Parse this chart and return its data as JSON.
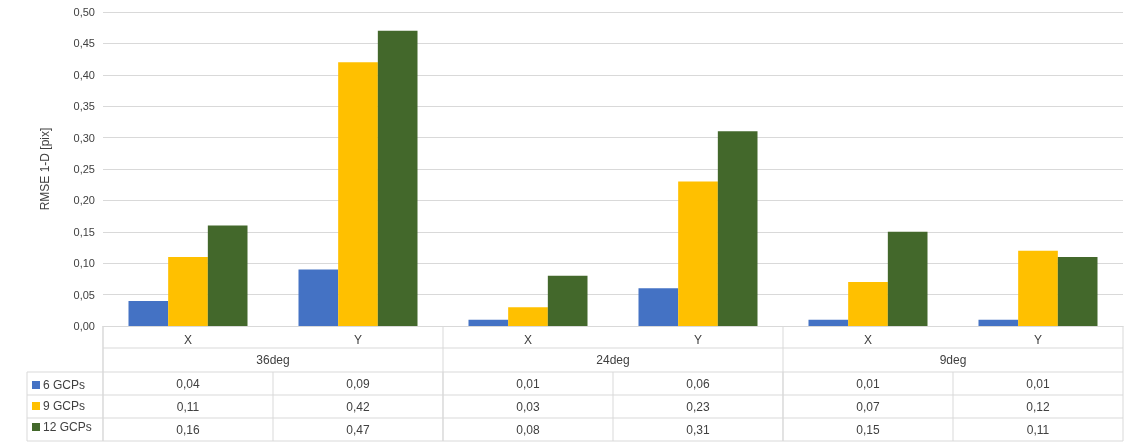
{
  "chart_data": {
    "type": "bar",
    "ylabel": "RMSE 1-D [pix]",
    "categories": [
      "X",
      "Y",
      "X",
      "Y",
      "X",
      "Y"
    ],
    "annotations": [
      "36deg",
      "24deg",
      "9deg"
    ],
    "series": [
      {
        "name": "6 GCPs",
        "color": "#4472c4",
        "values": [
          0.04,
          0.09,
          0.01,
          0.06,
          0.01,
          0.01
        ],
        "value_labels": [
          "0,04",
          "0,09",
          "0,01",
          "0,06",
          "0,01",
          "0,01"
        ]
      },
      {
        "name": "9 GCPs",
        "color": "#ffc000",
        "values": [
          0.11,
          0.42,
          0.03,
          0.23,
          0.07,
          0.12
        ],
        "value_labels": [
          "0,11",
          "0,42",
          "0,03",
          "0,23",
          "0,07",
          "0,12"
        ]
      },
      {
        "name": "12 GCPs",
        "color": "#43682b",
        "values": [
          0.16,
          0.47,
          0.08,
          0.31,
          0.15,
          0.11
        ],
        "value_labels": [
          "0,16",
          "0,47",
          "0,08",
          "0,31",
          "0,15",
          "0,11"
        ]
      }
    ],
    "ylim": [
      0,
      0.5
    ],
    "yticks": [
      {
        "value": 0,
        "label": "0,00"
      },
      {
        "value": 0.05,
        "label": "0,05"
      },
      {
        "value": 0.1,
        "label": "0,10"
      },
      {
        "value": 0.15,
        "label": "0,15"
      },
      {
        "value": 0.2,
        "label": "0,20"
      },
      {
        "value": 0.25,
        "label": "0,25"
      },
      {
        "value": 0.3,
        "label": "0,30"
      },
      {
        "value": 0.35,
        "label": "0,35"
      },
      {
        "value": 0.4,
        "label": "0,40"
      },
      {
        "value": 0.45,
        "label": "0,45"
      },
      {
        "value": 0.5,
        "label": "0,50"
      }
    ],
    "grid": "y",
    "legend": "bottom left"
  }
}
